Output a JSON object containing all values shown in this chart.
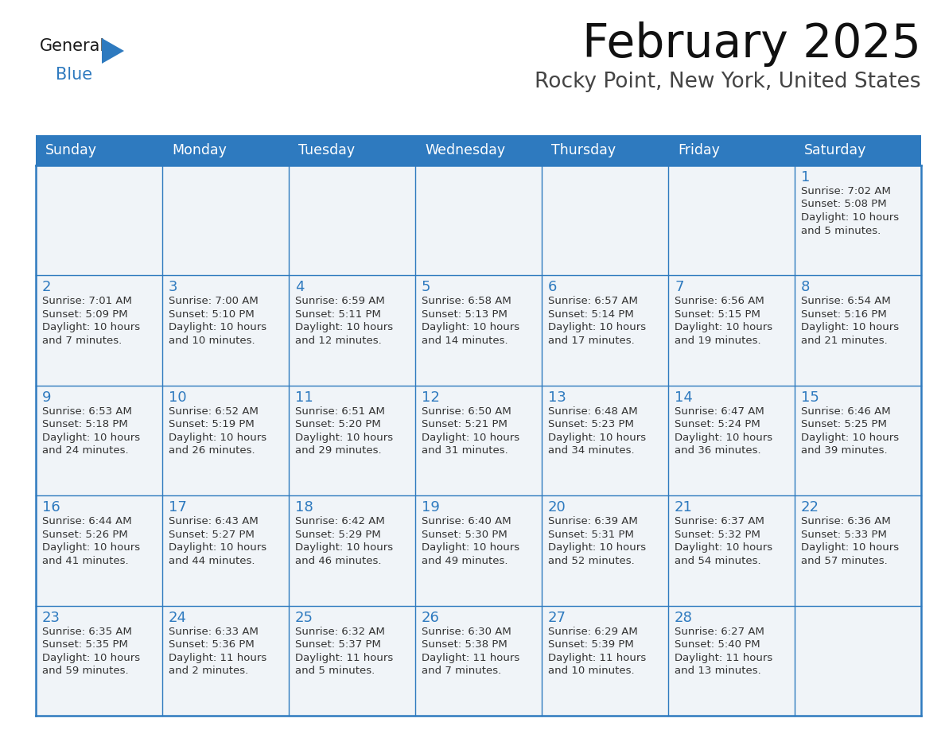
{
  "title": "February 2025",
  "subtitle": "Rocky Point, New York, United States",
  "header_bg": "#2E7ABF",
  "header_text_color": "#FFFFFF",
  "cell_border_color": "#2E7ABF",
  "day_number_color": "#2E7ABF",
  "info_text_color": "#333333",
  "background_color": "#FFFFFF",
  "cell_bg_color": "#F0F4F8",
  "days_of_week": [
    "Sunday",
    "Monday",
    "Tuesday",
    "Wednesday",
    "Thursday",
    "Friday",
    "Saturday"
  ],
  "logo_general_color": "#1a1a1a",
  "logo_blue_color": "#2E7ABF",
  "weeks": [
    [
      null,
      null,
      null,
      null,
      null,
      null,
      {
        "day": "1",
        "sunrise": "7:02 AM",
        "sunset": "5:08 PM",
        "daylight": "10 hours and 5 minutes."
      }
    ],
    [
      {
        "day": "2",
        "sunrise": "7:01 AM",
        "sunset": "5:09 PM",
        "daylight": "10 hours and 7 minutes."
      },
      {
        "day": "3",
        "sunrise": "7:00 AM",
        "sunset": "5:10 PM",
        "daylight": "10 hours and 10 minutes."
      },
      {
        "day": "4",
        "sunrise": "6:59 AM",
        "sunset": "5:11 PM",
        "daylight": "10 hours and 12 minutes."
      },
      {
        "day": "5",
        "sunrise": "6:58 AM",
        "sunset": "5:13 PM",
        "daylight": "10 hours and 14 minutes."
      },
      {
        "day": "6",
        "sunrise": "6:57 AM",
        "sunset": "5:14 PM",
        "daylight": "10 hours and 17 minutes."
      },
      {
        "day": "7",
        "sunrise": "6:56 AM",
        "sunset": "5:15 PM",
        "daylight": "10 hours and 19 minutes."
      },
      {
        "day": "8",
        "sunrise": "6:54 AM",
        "sunset": "5:16 PM",
        "daylight": "10 hours and 21 minutes."
      }
    ],
    [
      {
        "day": "9",
        "sunrise": "6:53 AM",
        "sunset": "5:18 PM",
        "daylight": "10 hours and 24 minutes."
      },
      {
        "day": "10",
        "sunrise": "6:52 AM",
        "sunset": "5:19 PM",
        "daylight": "10 hours and 26 minutes."
      },
      {
        "day": "11",
        "sunrise": "6:51 AM",
        "sunset": "5:20 PM",
        "daylight": "10 hours and 29 minutes."
      },
      {
        "day": "12",
        "sunrise": "6:50 AM",
        "sunset": "5:21 PM",
        "daylight": "10 hours and 31 minutes."
      },
      {
        "day": "13",
        "sunrise": "6:48 AM",
        "sunset": "5:23 PM",
        "daylight": "10 hours and 34 minutes."
      },
      {
        "day": "14",
        "sunrise": "6:47 AM",
        "sunset": "5:24 PM",
        "daylight": "10 hours and 36 minutes."
      },
      {
        "day": "15",
        "sunrise": "6:46 AM",
        "sunset": "5:25 PM",
        "daylight": "10 hours and 39 minutes."
      }
    ],
    [
      {
        "day": "16",
        "sunrise": "6:44 AM",
        "sunset": "5:26 PM",
        "daylight": "10 hours and 41 minutes."
      },
      {
        "day": "17",
        "sunrise": "6:43 AM",
        "sunset": "5:27 PM",
        "daylight": "10 hours and 44 minutes."
      },
      {
        "day": "18",
        "sunrise": "6:42 AM",
        "sunset": "5:29 PM",
        "daylight": "10 hours and 46 minutes."
      },
      {
        "day": "19",
        "sunrise": "6:40 AM",
        "sunset": "5:30 PM",
        "daylight": "10 hours and 49 minutes."
      },
      {
        "day": "20",
        "sunrise": "6:39 AM",
        "sunset": "5:31 PM",
        "daylight": "10 hours and 52 minutes."
      },
      {
        "day": "21",
        "sunrise": "6:37 AM",
        "sunset": "5:32 PM",
        "daylight": "10 hours and 54 minutes."
      },
      {
        "day": "22",
        "sunrise": "6:36 AM",
        "sunset": "5:33 PM",
        "daylight": "10 hours and 57 minutes."
      }
    ],
    [
      {
        "day": "23",
        "sunrise": "6:35 AM",
        "sunset": "5:35 PM",
        "daylight": "10 hours and 59 minutes."
      },
      {
        "day": "24",
        "sunrise": "6:33 AM",
        "sunset": "5:36 PM",
        "daylight": "11 hours and 2 minutes."
      },
      {
        "day": "25",
        "sunrise": "6:32 AM",
        "sunset": "5:37 PM",
        "daylight": "11 hours and 5 minutes."
      },
      {
        "day": "26",
        "sunrise": "6:30 AM",
        "sunset": "5:38 PM",
        "daylight": "11 hours and 7 minutes."
      },
      {
        "day": "27",
        "sunrise": "6:29 AM",
        "sunset": "5:39 PM",
        "daylight": "11 hours and 10 minutes."
      },
      {
        "day": "28",
        "sunrise": "6:27 AM",
        "sunset": "5:40 PM",
        "daylight": "11 hours and 13 minutes."
      },
      null
    ]
  ]
}
